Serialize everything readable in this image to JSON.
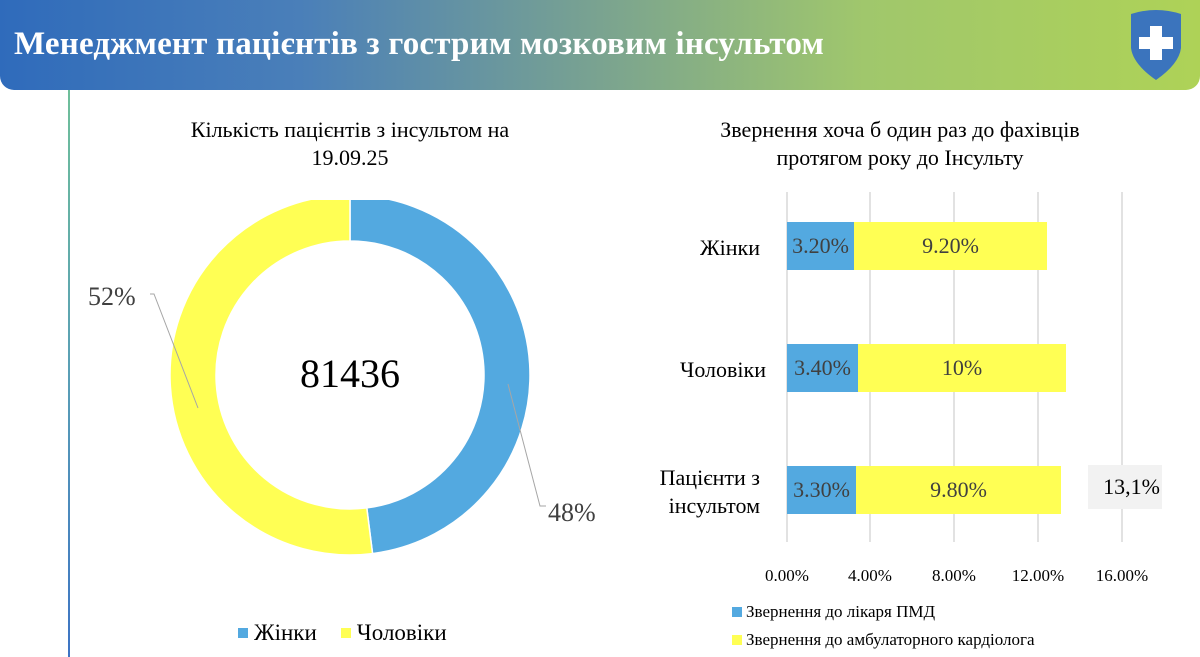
{
  "header": {
    "title": "Менеджмент пацієнтів з гострим мозковим інсультом",
    "logo": "shield-cross-icon",
    "gradient": [
      "#2f6bbb",
      "#aed257"
    ]
  },
  "left_chart": {
    "title_line1": "Кількість пацієнтів з інсультом на",
    "title_line2": "19.09.25",
    "center_value": "81436",
    "label_women": "48%",
    "label_men": "52%",
    "legend": [
      {
        "label": "Жінки",
        "color": "#53a9e0"
      },
      {
        "label": "Чоловіки",
        "color": "#ffff54"
      }
    ]
  },
  "right_chart": {
    "title_line1": "Звернення хоча б один раз до фахівців",
    "title_line2": "протягом року до Інсульту",
    "categories": [
      "Жінки",
      "Чоловіки",
      "Пацієнти з інсультом"
    ],
    "category_lines": [
      [
        "Жінки"
      ],
      [
        "Чоловіки"
      ],
      [
        "Пацієнти з",
        "інсультом"
      ]
    ],
    "blue_labels": [
      "3.20%",
      "3.40%",
      "3.30%"
    ],
    "yellow_labels": [
      "9.20%",
      "10%",
      "9.80%"
    ],
    "total_label": "13,1%",
    "x_ticks": [
      "0.00%",
      "4.00%",
      "8.00%",
      "12.00%",
      "16.00%"
    ],
    "legend": [
      {
        "label": "Звернення до лікаря ПМД",
        "color": "#53a9e0"
      },
      {
        "label": "Звернення до амбулаторного кардіолога",
        "color": "#ffff54"
      }
    ]
  },
  "chart_data": [
    {
      "type": "pie",
      "title": "Кількість пацієнтів з інсультом на 19.09.25",
      "donut": true,
      "center_text": "81436",
      "categories": [
        "Жінки",
        "Чоловіки"
      ],
      "values": [
        48,
        52
      ],
      "colors": [
        "#53a9e0",
        "#ffff54"
      ],
      "legend_position": "bottom"
    },
    {
      "type": "bar",
      "orientation": "horizontal",
      "stacked": true,
      "title": "Звернення хоча б один раз до фахівців протягом року до Інсульту",
      "categories": [
        "Жінки",
        "Чоловіки",
        "Пацієнти з інсультом"
      ],
      "series": [
        {
          "name": "Звернення до лікаря ПМД",
          "values": [
            3.2,
            3.4,
            3.3
          ],
          "color": "#53a9e0"
        },
        {
          "name": "Звернення до амбулаторного кардіолога",
          "values": [
            9.2,
            10.0,
            9.8
          ],
          "color": "#ffff54"
        }
      ],
      "annotations": [
        {
          "category": "Пацієнти з інсультом",
          "text": "13,1%"
        }
      ],
      "xlabel": "",
      "ylabel": "",
      "xlim": [
        0,
        16
      ],
      "x_ticks": [
        "0.00%",
        "4.00%",
        "8.00%",
        "12.00%",
        "16.00%"
      ],
      "grid": true,
      "legend_position": "bottom"
    }
  ]
}
